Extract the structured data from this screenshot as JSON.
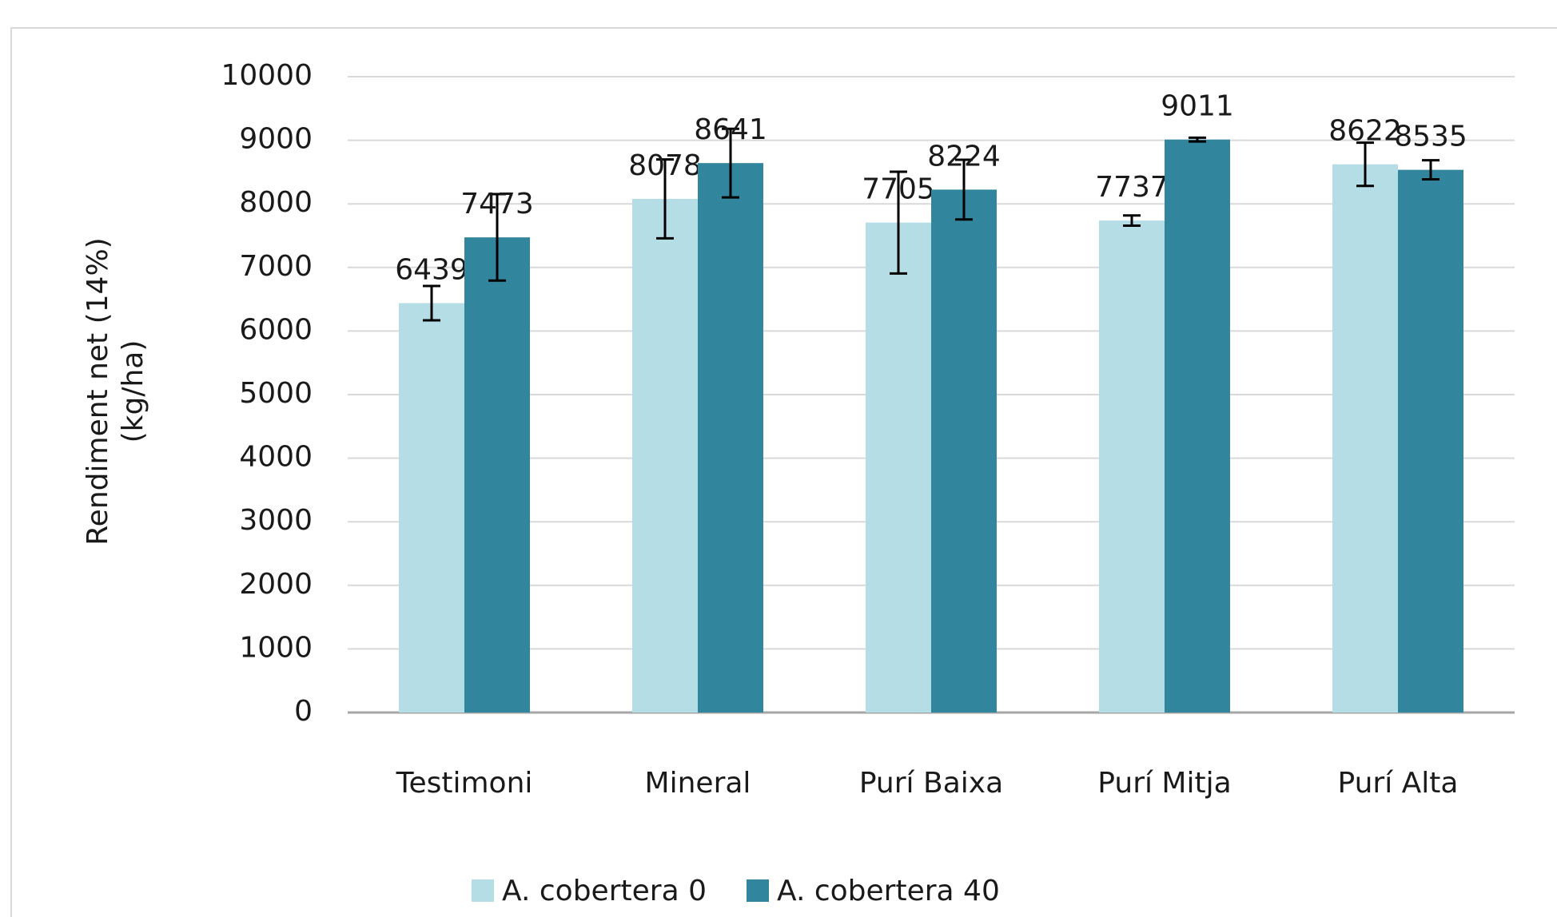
{
  "chart_data": {
    "type": "bar",
    "ylabel": [
      "Rendiment net (14%)",
      "(kg/ha)"
    ],
    "categories": [
      "Testimoni",
      "Mineral",
      "Purí Baixa",
      "Purí Mitja",
      "Purí Alta"
    ],
    "series": [
      {
        "name": "A. cobertera 0",
        "color": "#b4dde6",
        "values": [
          6439,
          8078,
          7705,
          7737,
          8622
        ],
        "errors": [
          270,
          620,
          800,
          80,
          340
        ]
      },
      {
        "name": "A. cobertera 40",
        "color": "#31859c",
        "values": [
          7473,
          8641,
          8224,
          9011,
          8535
        ],
        "errors": [
          680,
          540,
          470,
          30,
          150
        ]
      }
    ],
    "ylim": [
      0,
      10000
    ],
    "yticks": [
      0,
      1000,
      2000,
      3000,
      4000,
      5000,
      6000,
      7000,
      8000,
      9000,
      10000
    ],
    "grid": true,
    "legend": "bottom"
  }
}
